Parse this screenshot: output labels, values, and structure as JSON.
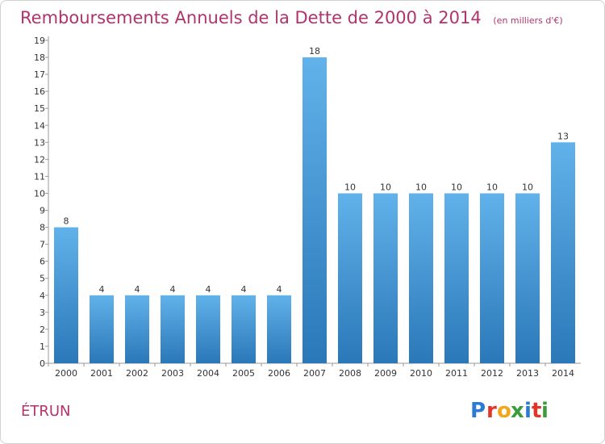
{
  "title": "Remboursements Annuels de la Dette de 2000 à 2014",
  "unit": "(en milliers d'€)",
  "commune": "ÉTRUN",
  "logo": {
    "letters": [
      "P",
      "r",
      "o",
      "x",
      "i",
      "t",
      "i"
    ],
    "colors": [
      "#2b7bd3",
      "#e0352b",
      "#f2a61c",
      "#3a9d3a",
      "#2b7bd3",
      "#e0352b",
      "#3a9d3a"
    ]
  },
  "colors": {
    "bar_top": "#61b1ea",
    "bar_bottom": "#2a78b8",
    "title": "#b0336d"
  },
  "chart_data": {
    "type": "bar",
    "categories": [
      "2000",
      "2001",
      "2002",
      "2003",
      "2004",
      "2005",
      "2006",
      "2007",
      "2008",
      "2009",
      "2010",
      "2011",
      "2012",
      "2013",
      "2014"
    ],
    "values": [
      8,
      4,
      4,
      4,
      4,
      4,
      4,
      18,
      10,
      10,
      10,
      10,
      10,
      10,
      13
    ],
    "ylim": [
      0,
      19
    ],
    "yticks": [
      0,
      1,
      2,
      3,
      4,
      5,
      6,
      7,
      8,
      9,
      10,
      11,
      12,
      13,
      14,
      15,
      16,
      17,
      18,
      19
    ],
    "grid": false,
    "xlabel": "",
    "ylabel": ""
  }
}
